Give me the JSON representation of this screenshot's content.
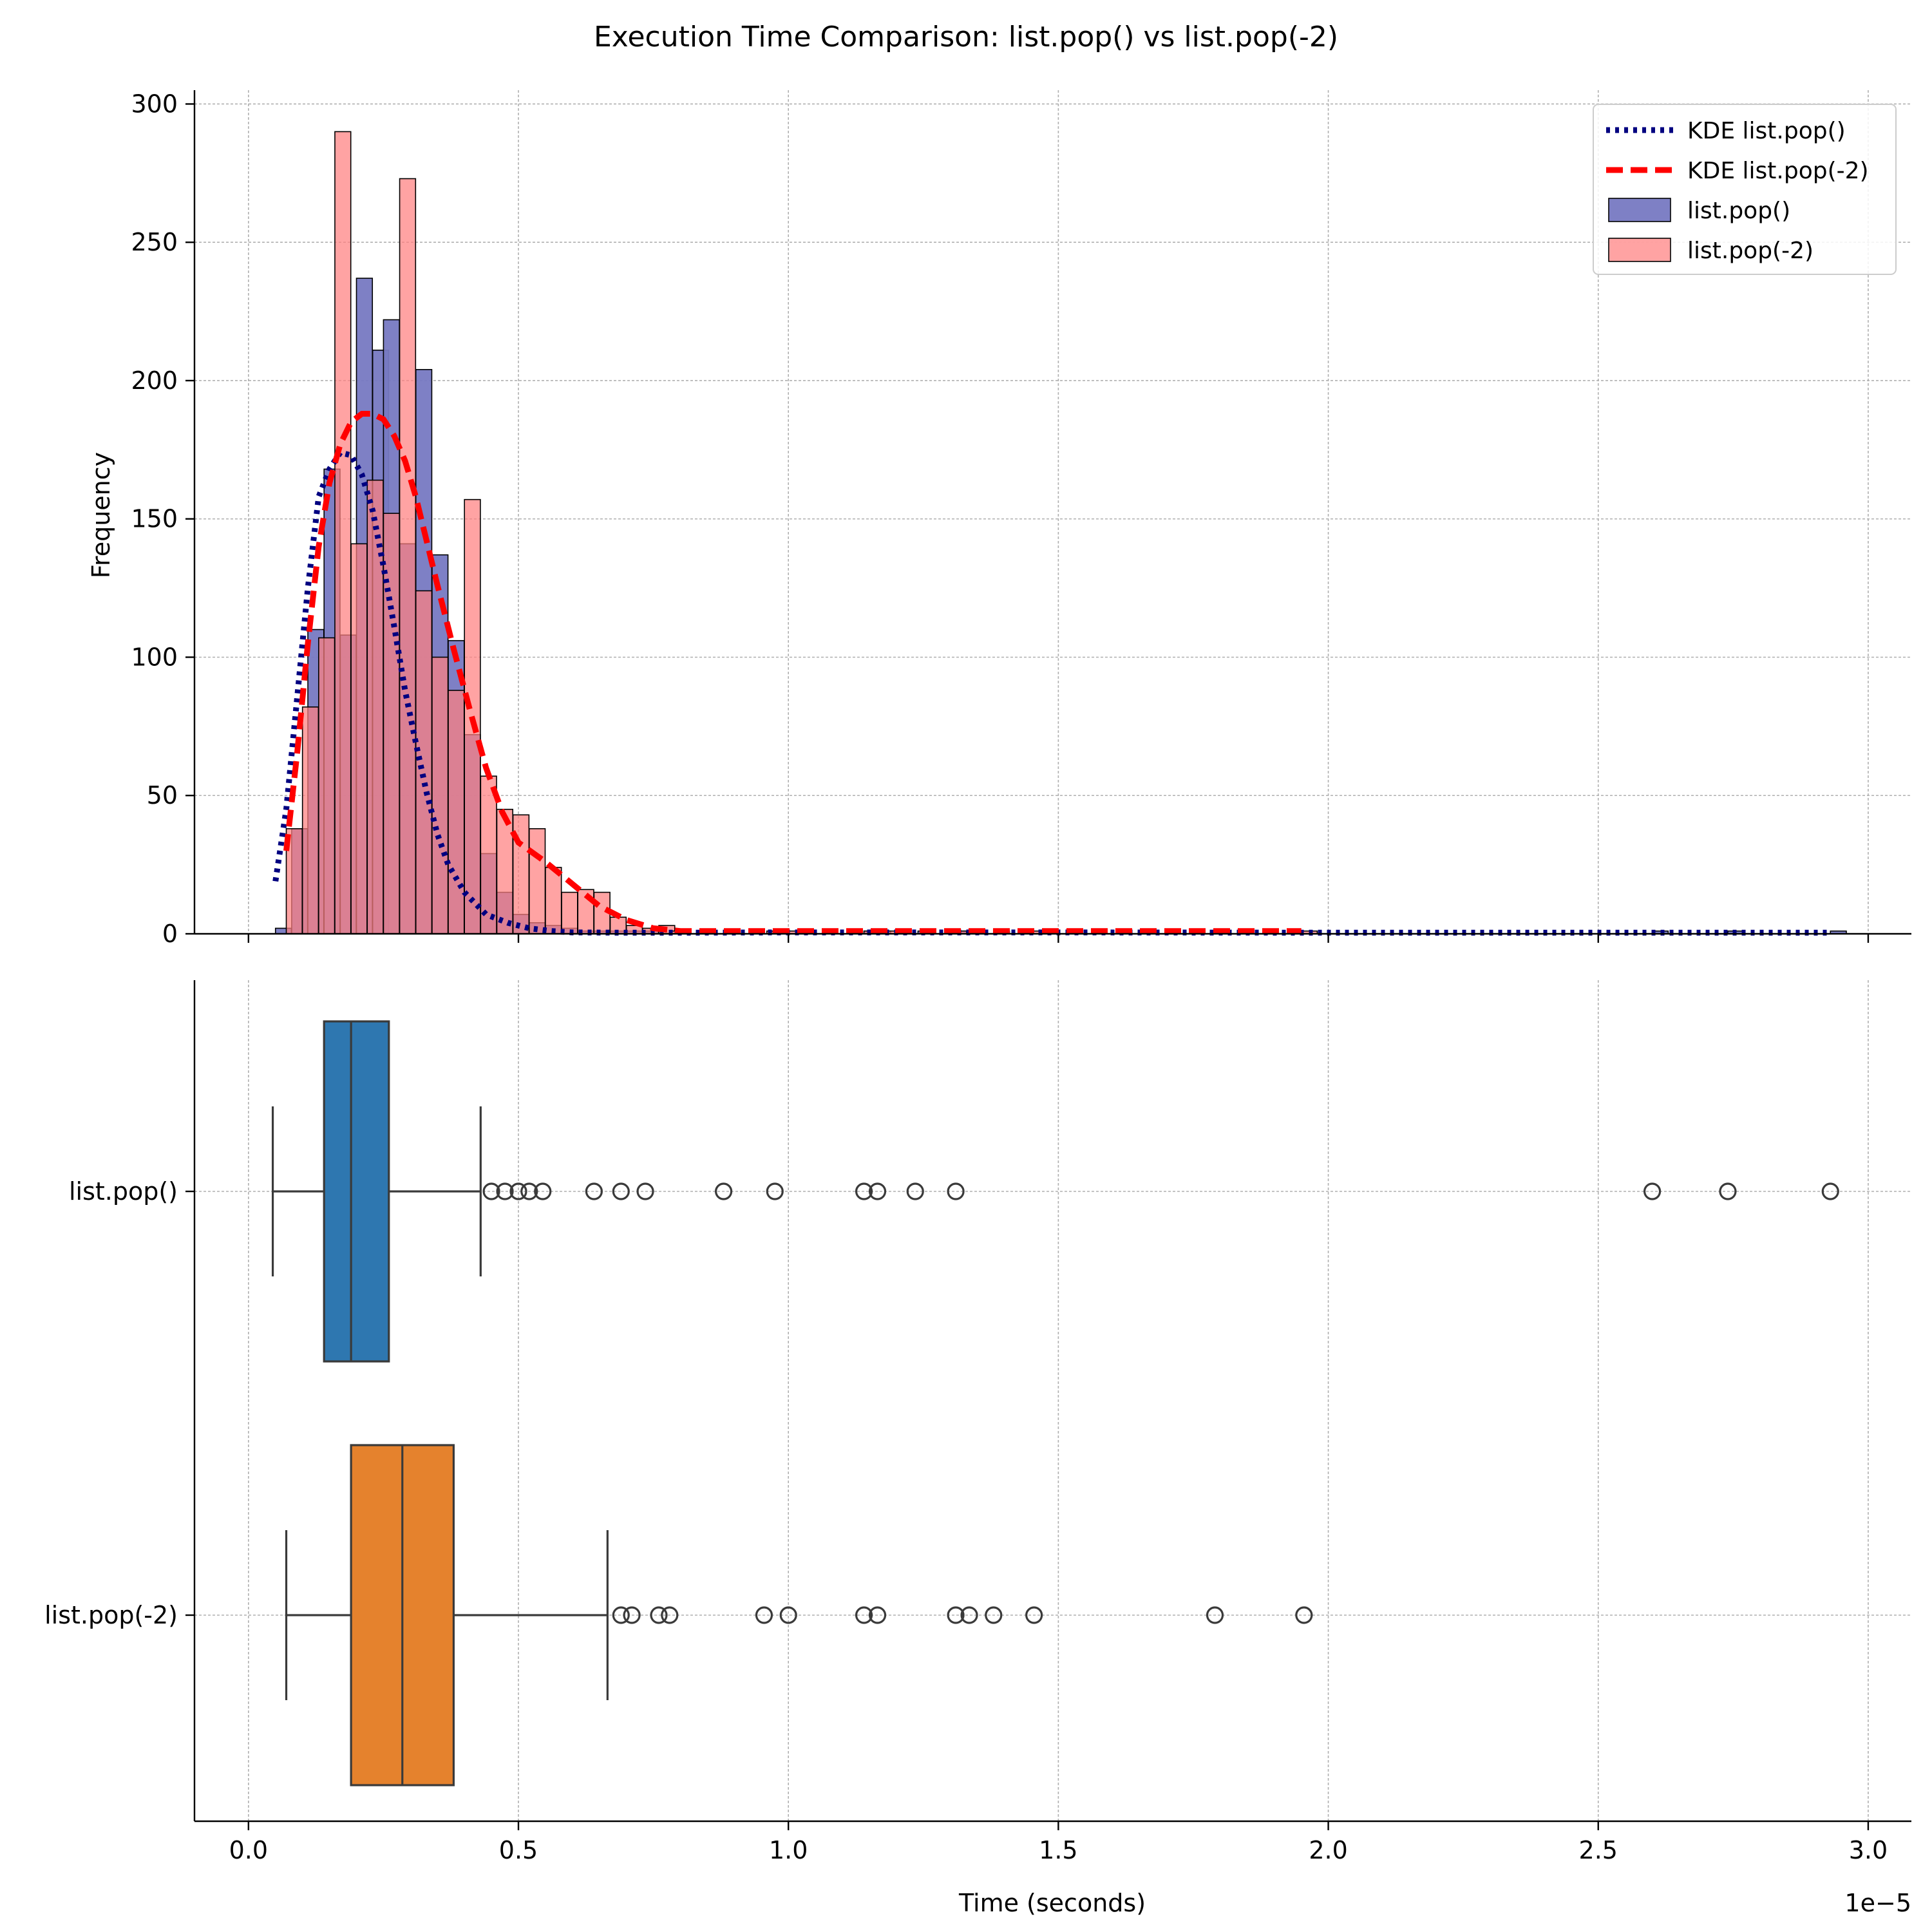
{
  "chart_data": [
    {
      "type": "histogram+kde",
      "title": "Execution Time Comparison: list.pop() vs list.pop(-2)",
      "xlabel": "",
      "ylabel": "Frequency",
      "x_offset_label": "1e−5",
      "xlim": [
        -0.1,
        3.08
      ],
      "ylim": [
        0,
        305
      ],
      "xticks": [
        0.0,
        0.5,
        1.0,
        1.5,
        2.0,
        2.5,
        3.0
      ],
      "yticks": [
        0,
        50,
        100,
        150,
        200,
        250,
        300
      ],
      "grid": true,
      "legend_position": "top-right",
      "series": [
        {
          "name": "list.pop()",
          "kind": "histogram",
          "color": "#7779c2",
          "bin_width": 0.0295,
          "bins": [
            [
              0.05,
              2
            ],
            [
              0.08,
              38
            ],
            [
              0.11,
              110
            ],
            [
              0.14,
              168
            ],
            [
              0.17,
              108
            ],
            [
              0.2,
              237
            ],
            [
              0.23,
              211
            ],
            [
              0.25,
              222
            ],
            [
              0.28,
              141
            ],
            [
              0.31,
              204
            ],
            [
              0.34,
              137
            ],
            [
              0.37,
              106
            ],
            [
              0.4,
              72
            ],
            [
              0.43,
              29
            ],
            [
              0.46,
              15
            ],
            [
              0.49,
              7
            ],
            [
              0.52,
              4
            ],
            [
              0.55,
              3
            ],
            [
              0.58,
              2
            ],
            [
              0.61,
              1
            ],
            [
              0.64,
              1
            ],
            [
              0.67,
              1
            ],
            [
              0.7,
              1
            ],
            [
              0.73,
              1
            ],
            [
              0.88,
              1
            ],
            [
              0.97,
              1
            ],
            [
              1.14,
              1
            ],
            [
              1.16,
              1
            ],
            [
              1.24,
              1
            ],
            [
              1.31,
              1
            ],
            [
              2.6,
              1
            ],
            [
              2.74,
              1
            ],
            [
              2.93,
              1
            ]
          ]
        },
        {
          "name": "list.pop(-2)",
          "kind": "histogram",
          "color": "#ff7f7f",
          "bin_width": 0.0295,
          "bins": [
            [
              0.07,
              38
            ],
            [
              0.1,
              82
            ],
            [
              0.13,
              107
            ],
            [
              0.16,
              290
            ],
            [
              0.19,
              141
            ],
            [
              0.22,
              164
            ],
            [
              0.25,
              152
            ],
            [
              0.28,
              273
            ],
            [
              0.31,
              124
            ],
            [
              0.34,
              100
            ],
            [
              0.37,
              88
            ],
            [
              0.4,
              157
            ],
            [
              0.43,
              57
            ],
            [
              0.46,
              45
            ],
            [
              0.49,
              43
            ],
            [
              0.52,
              38
            ],
            [
              0.55,
              24
            ],
            [
              0.58,
              15
            ],
            [
              0.61,
              16
            ],
            [
              0.64,
              15
            ],
            [
              0.67,
              6
            ],
            [
              0.7,
              3
            ],
            [
              0.73,
              2
            ],
            [
              0.76,
              3
            ],
            [
              0.78,
              1
            ],
            [
              0.96,
              1
            ],
            [
              1.0,
              1
            ],
            [
              1.14,
              1
            ],
            [
              1.17,
              1
            ],
            [
              1.31,
              1
            ],
            [
              1.33,
              1
            ],
            [
              1.38,
              1
            ],
            [
              1.45,
              1
            ],
            [
              1.79,
              1
            ],
            [
              1.95,
              1
            ]
          ]
        },
        {
          "name": "KDE list.pop()",
          "kind": "line",
          "color": "#000080",
          "dash": "dotted",
          "x": [
            0.05,
            0.07,
            0.09,
            0.11,
            0.13,
            0.15,
            0.17,
            0.19,
            0.21,
            0.23,
            0.25,
            0.27,
            0.29,
            0.31,
            0.33,
            0.35,
            0.37,
            0.4,
            0.44,
            0.48,
            0.52,
            0.56,
            0.6,
            0.7,
            0.8,
            1.0,
            1.5,
            2.0,
            2.5,
            2.93
          ],
          "y": [
            19,
            45,
            85,
            125,
            158,
            168,
            174,
            173,
            166,
            153,
            133,
            111,
            88,
            69,
            51,
            36,
            25,
            15,
            7,
            4,
            2,
            1,
            0.5,
            0.4,
            0.4,
            0.5,
            0.5,
            0.4,
            0.4,
            0.4
          ]
        },
        {
          "name": "KDE list.pop(-2)",
          "kind": "line",
          "color": "#ff0000",
          "dash": "dashed",
          "x": [
            0.07,
            0.09,
            0.11,
            0.13,
            0.15,
            0.17,
            0.19,
            0.21,
            0.23,
            0.25,
            0.27,
            0.29,
            0.31,
            0.33,
            0.35,
            0.38,
            0.41,
            0.44,
            0.47,
            0.5,
            0.55,
            0.6,
            0.65,
            0.7,
            0.75,
            0.8,
            1.0,
            1.5,
            1.95
          ],
          "y": [
            30,
            65,
            105,
            140,
            163,
            177,
            185,
            188,
            188,
            186,
            180,
            171,
            158,
            142,
            126,
            103,
            81,
            60,
            44,
            33,
            26,
            18,
            10,
            5,
            2,
            1,
            1,
            1,
            1
          ]
        }
      ]
    },
    {
      "type": "box",
      "xlabel": "Time (seconds)",
      "ylabel": "",
      "x_offset_label": "1e−5",
      "xlim": [
        -0.1,
        3.08
      ],
      "xticks": [
        0.0,
        0.5,
        1.0,
        1.5,
        2.0,
        2.5,
        3.0
      ],
      "xtick_labels": [
        "0.0",
        "0.5",
        "1.0",
        "1.5",
        "2.0",
        "2.5",
        "3.0"
      ],
      "grid": true,
      "categories": [
        "list.pop()",
        "list.pop(-2)"
      ],
      "series": [
        {
          "name": "list.pop()",
          "color": "#2e77b0",
          "whisker_low": 0.045,
          "q1": 0.14,
          "median": 0.19,
          "q3": 0.26,
          "whisker_high": 0.43,
          "outliers": [
            0.45,
            0.475,
            0.5,
            0.52,
            0.545,
            0.64,
            0.69,
            0.735,
            0.88,
            0.975,
            1.14,
            1.165,
            1.235,
            1.31,
            2.6,
            2.74,
            2.93
          ]
        },
        {
          "name": "list.pop(-2)",
          "color": "#e5822d",
          "whisker_low": 0.07,
          "q1": 0.19,
          "median": 0.285,
          "q3": 0.38,
          "whisker_high": 0.665,
          "outliers": [
            0.69,
            0.71,
            0.76,
            0.78,
            0.955,
            1.0,
            1.14,
            1.165,
            1.31,
            1.335,
            1.38,
            1.455,
            1.79,
            1.955
          ]
        }
      ]
    }
  ]
}
